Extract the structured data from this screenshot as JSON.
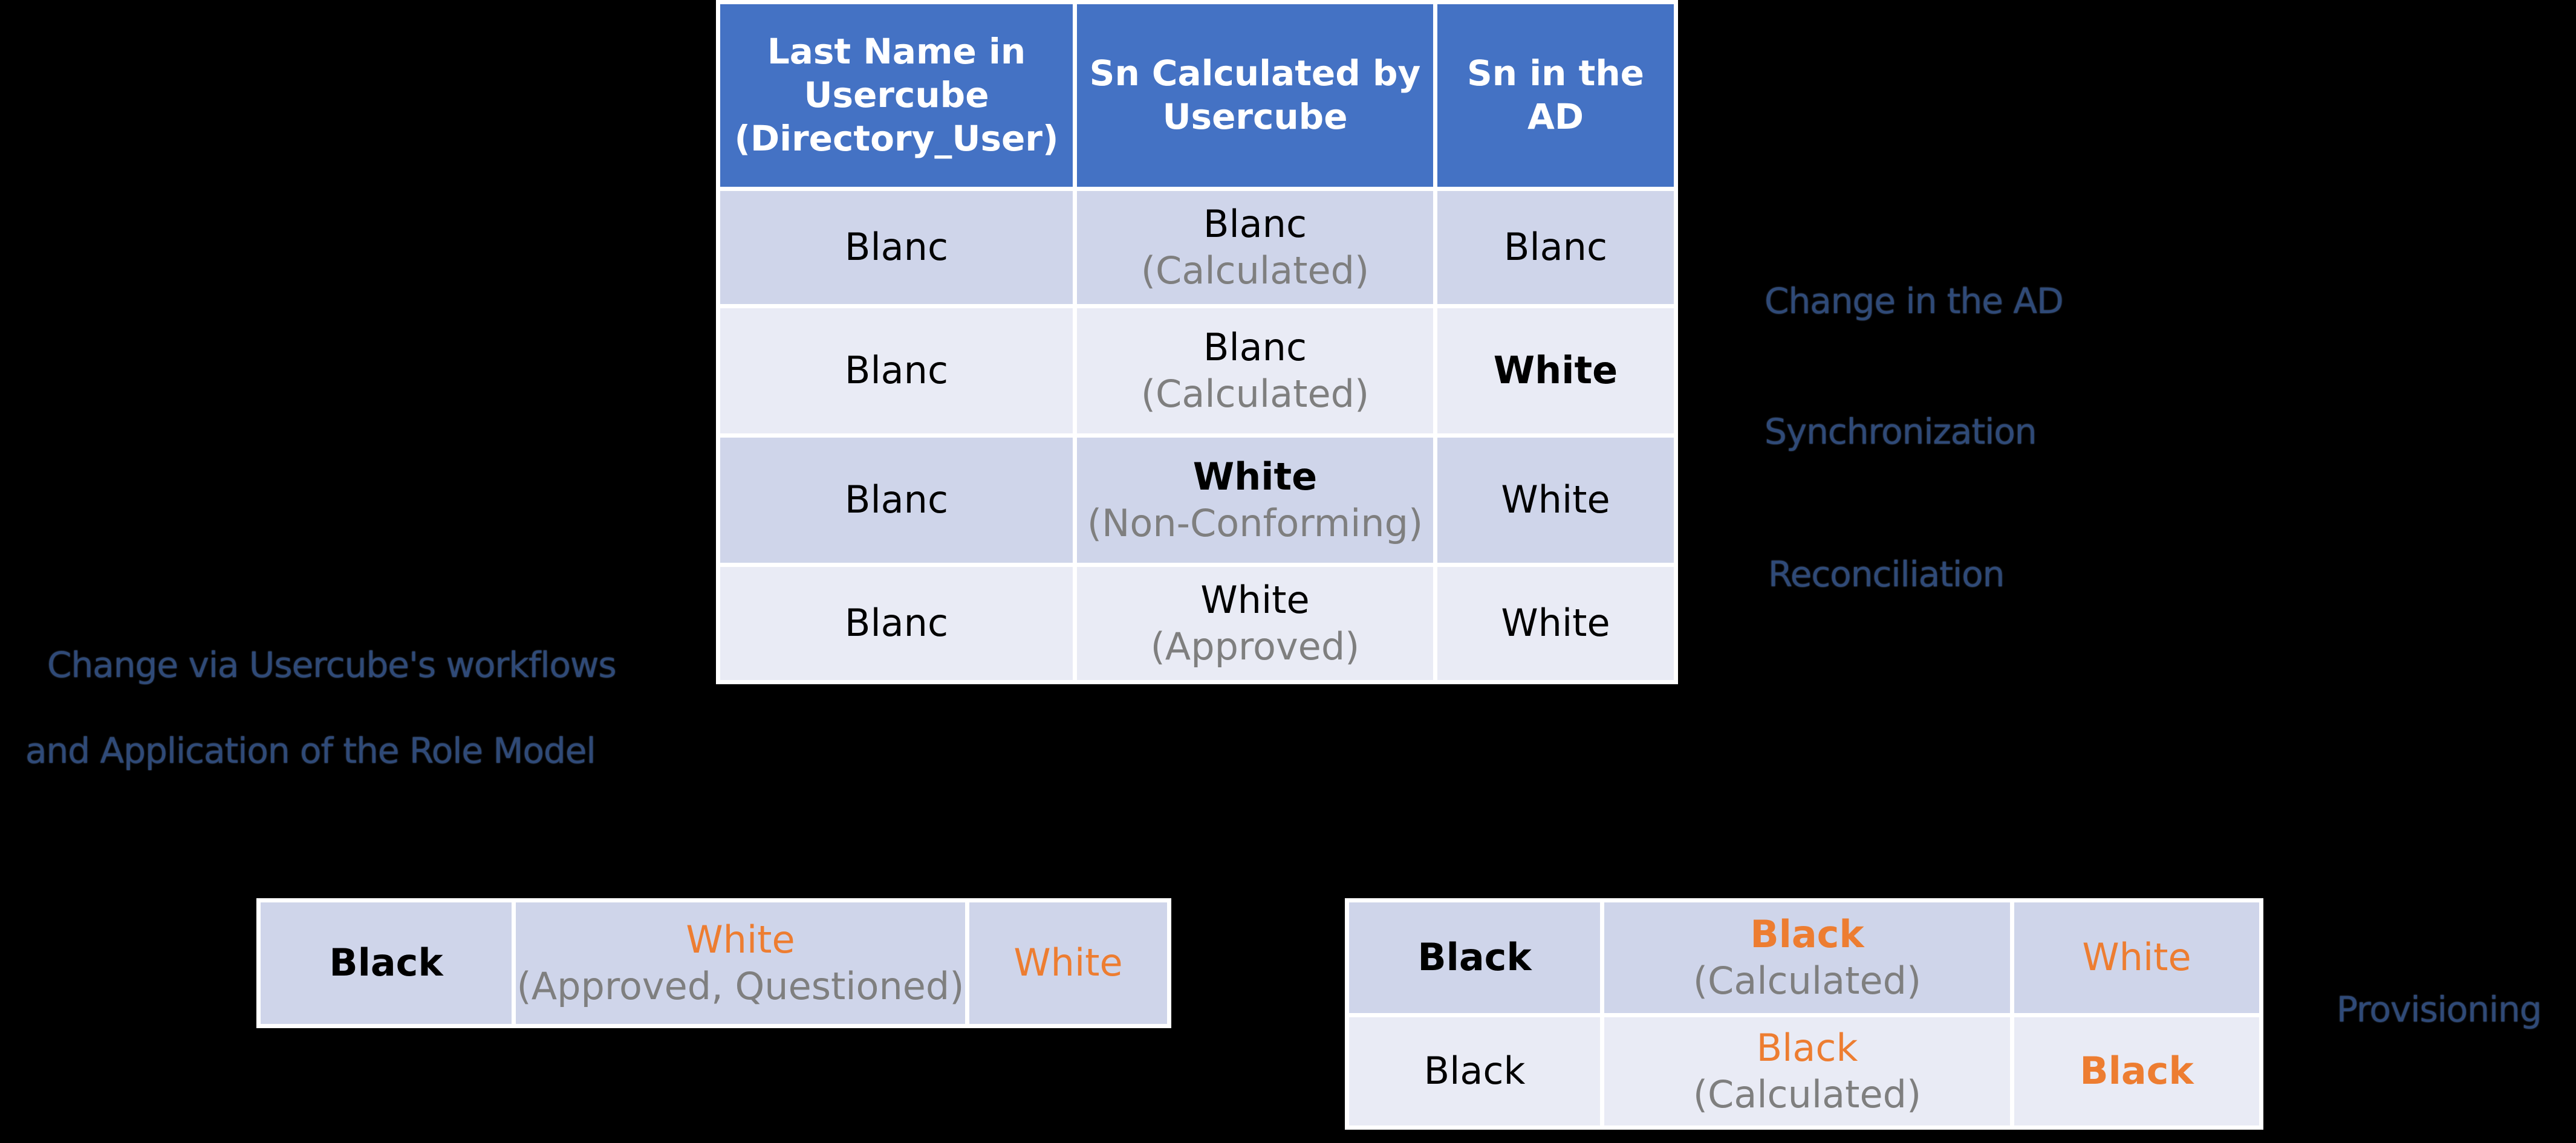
{
  "main_table": {
    "headers": [
      "Last Name in Usercube (Directory_User)",
      "Sn Calculated by Usercube",
      "Sn in the AD"
    ],
    "header_lines": [
      [
        "Last Name in",
        "Usercube",
        "(Directory_User)"
      ],
      [
        "Sn Calculated by",
        "Usercube"
      ],
      [
        "Sn in the",
        "AD"
      ]
    ],
    "rows": [
      {
        "last_name": "Blanc",
        "sn_calc": "Blanc",
        "sn_calc_status": "(Calculated)",
        "sn_ad": "Blanc"
      },
      {
        "last_name": "Blanc",
        "sn_calc": "Blanc",
        "sn_calc_status": "(Calculated)",
        "sn_ad": "White"
      },
      {
        "last_name": "Blanc",
        "sn_calc": "White",
        "sn_calc_status": "(Non-Conforming)",
        "sn_ad": "White"
      },
      {
        "last_name": "Blanc",
        "sn_calc": "White",
        "sn_calc_status": "(Approved)",
        "sn_ad": "White"
      }
    ]
  },
  "annotations": {
    "change_in_ad": "Change in the AD",
    "synchronization": "Synchronization",
    "reconciliation": "Reconciliation",
    "change_via_workflows": "Change via Usercube's workflows",
    "application_role_model": "and Application of the Role Model",
    "provisioning": "Provisioning"
  },
  "left_table": {
    "rows": [
      {
        "last_name": "Black",
        "sn_calc": "White",
        "sn_calc_status": "(Approved, Questioned)",
        "sn_ad": "White"
      }
    ]
  },
  "right_table": {
    "rows": [
      {
        "last_name": "Black",
        "sn_calc": "Black",
        "sn_calc_status": "(Calculated)",
        "sn_ad": "White"
      },
      {
        "last_name": "Black",
        "sn_calc": "Black",
        "sn_calc_status": "(Calculated)",
        "sn_ad": "Black"
      }
    ]
  },
  "colors": {
    "header_blue": "#4472c4",
    "row_dark": "#cfd5ea",
    "row_light": "#e9ebf5",
    "status_gray": "#7f7f7f",
    "highlight_orange": "#ed7d31",
    "annotation_blue": "#2f4a78"
  }
}
